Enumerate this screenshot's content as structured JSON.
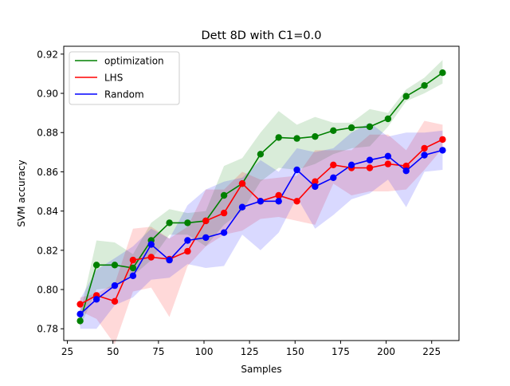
{
  "chart_data": {
    "type": "line",
    "title": "Dett 8D with C1=0.0",
    "xlabel": "Samples",
    "ylabel": "SVM accuracy",
    "xlim": [
      23,
      240
    ],
    "ylim": [
      0.774,
      0.924
    ],
    "xticks": [
      25,
      50,
      75,
      100,
      125,
      150,
      175,
      200,
      225
    ],
    "yticks": [
      0.78,
      0.8,
      0.82,
      0.84,
      0.86,
      0.88,
      0.9,
      0.92
    ],
    "grid": false,
    "legend_position": "top-left",
    "x": [
      32,
      41,
      51,
      61,
      71,
      81,
      91,
      101,
      111,
      121,
      131,
      141,
      151,
      161,
      171,
      181,
      191,
      201,
      211,
      221,
      231
    ],
    "series": [
      {
        "name": "optimization",
        "color": "#008000",
        "values": [
          0.784,
          0.8125,
          0.8125,
          0.811,
          0.825,
          0.834,
          0.834,
          0.835,
          0.848,
          0.854,
          0.869,
          0.8775,
          0.877,
          0.878,
          0.881,
          0.8825,
          0.883,
          0.887,
          0.8985,
          0.904,
          0.9105
        ],
        "lower": [
          0.781,
          0.8,
          0.801,
          0.807,
          0.815,
          0.828,
          0.828,
          0.822,
          0.833,
          0.84,
          0.855,
          0.862,
          0.861,
          0.864,
          0.869,
          0.872,
          0.873,
          0.883,
          0.896,
          0.9,
          0.905
        ],
        "upper": [
          0.788,
          0.825,
          0.824,
          0.818,
          0.834,
          0.841,
          0.839,
          0.84,
          0.863,
          0.867,
          0.88,
          0.891,
          0.884,
          0.888,
          0.885,
          0.885,
          0.892,
          0.89,
          0.902,
          0.908,
          0.917
        ]
      },
      {
        "name": "LHS",
        "color": "#ff0000",
        "values": [
          0.7925,
          0.797,
          0.794,
          0.815,
          0.8165,
          0.8155,
          0.8195,
          0.835,
          0.839,
          0.854,
          0.845,
          0.848,
          0.845,
          0.855,
          0.8635,
          0.862,
          0.862,
          0.864,
          0.863,
          0.872,
          0.8765
        ],
        "lower": [
          0.789,
          0.785,
          0.772,
          0.799,
          0.801,
          0.786,
          0.812,
          0.822,
          0.828,
          0.83,
          0.836,
          0.837,
          0.835,
          0.833,
          0.854,
          0.848,
          0.85,
          0.85,
          0.851,
          0.861,
          0.872
        ],
        "upper": [
          0.796,
          0.798,
          0.803,
          0.831,
          0.832,
          0.826,
          0.832,
          0.851,
          0.851,
          0.86,
          0.856,
          0.857,
          0.858,
          0.871,
          0.871,
          0.871,
          0.879,
          0.879,
          0.871,
          0.886,
          0.884
        ]
      },
      {
        "name": "Random",
        "color": "#0000ff",
        "values": [
          0.7875,
          0.795,
          0.802,
          0.807,
          0.823,
          0.815,
          0.825,
          0.8265,
          0.829,
          0.842,
          0.845,
          0.845,
          0.861,
          0.8525,
          0.857,
          0.8635,
          0.866,
          0.868,
          0.8605,
          0.8685,
          0.871
        ],
        "lower": [
          0.78,
          0.78,
          0.792,
          0.796,
          0.805,
          0.806,
          0.813,
          0.811,
          0.812,
          0.828,
          0.82,
          0.829,
          0.847,
          0.831,
          0.838,
          0.846,
          0.849,
          0.856,
          0.842,
          0.86,
          0.861
        ],
        "upper": [
          0.795,
          0.81,
          0.816,
          0.822,
          0.831,
          0.826,
          0.843,
          0.851,
          0.855,
          0.857,
          0.866,
          0.86,
          0.872,
          0.87,
          0.872,
          0.88,
          0.885,
          0.878,
          0.88,
          0.88,
          0.881
        ]
      }
    ]
  }
}
